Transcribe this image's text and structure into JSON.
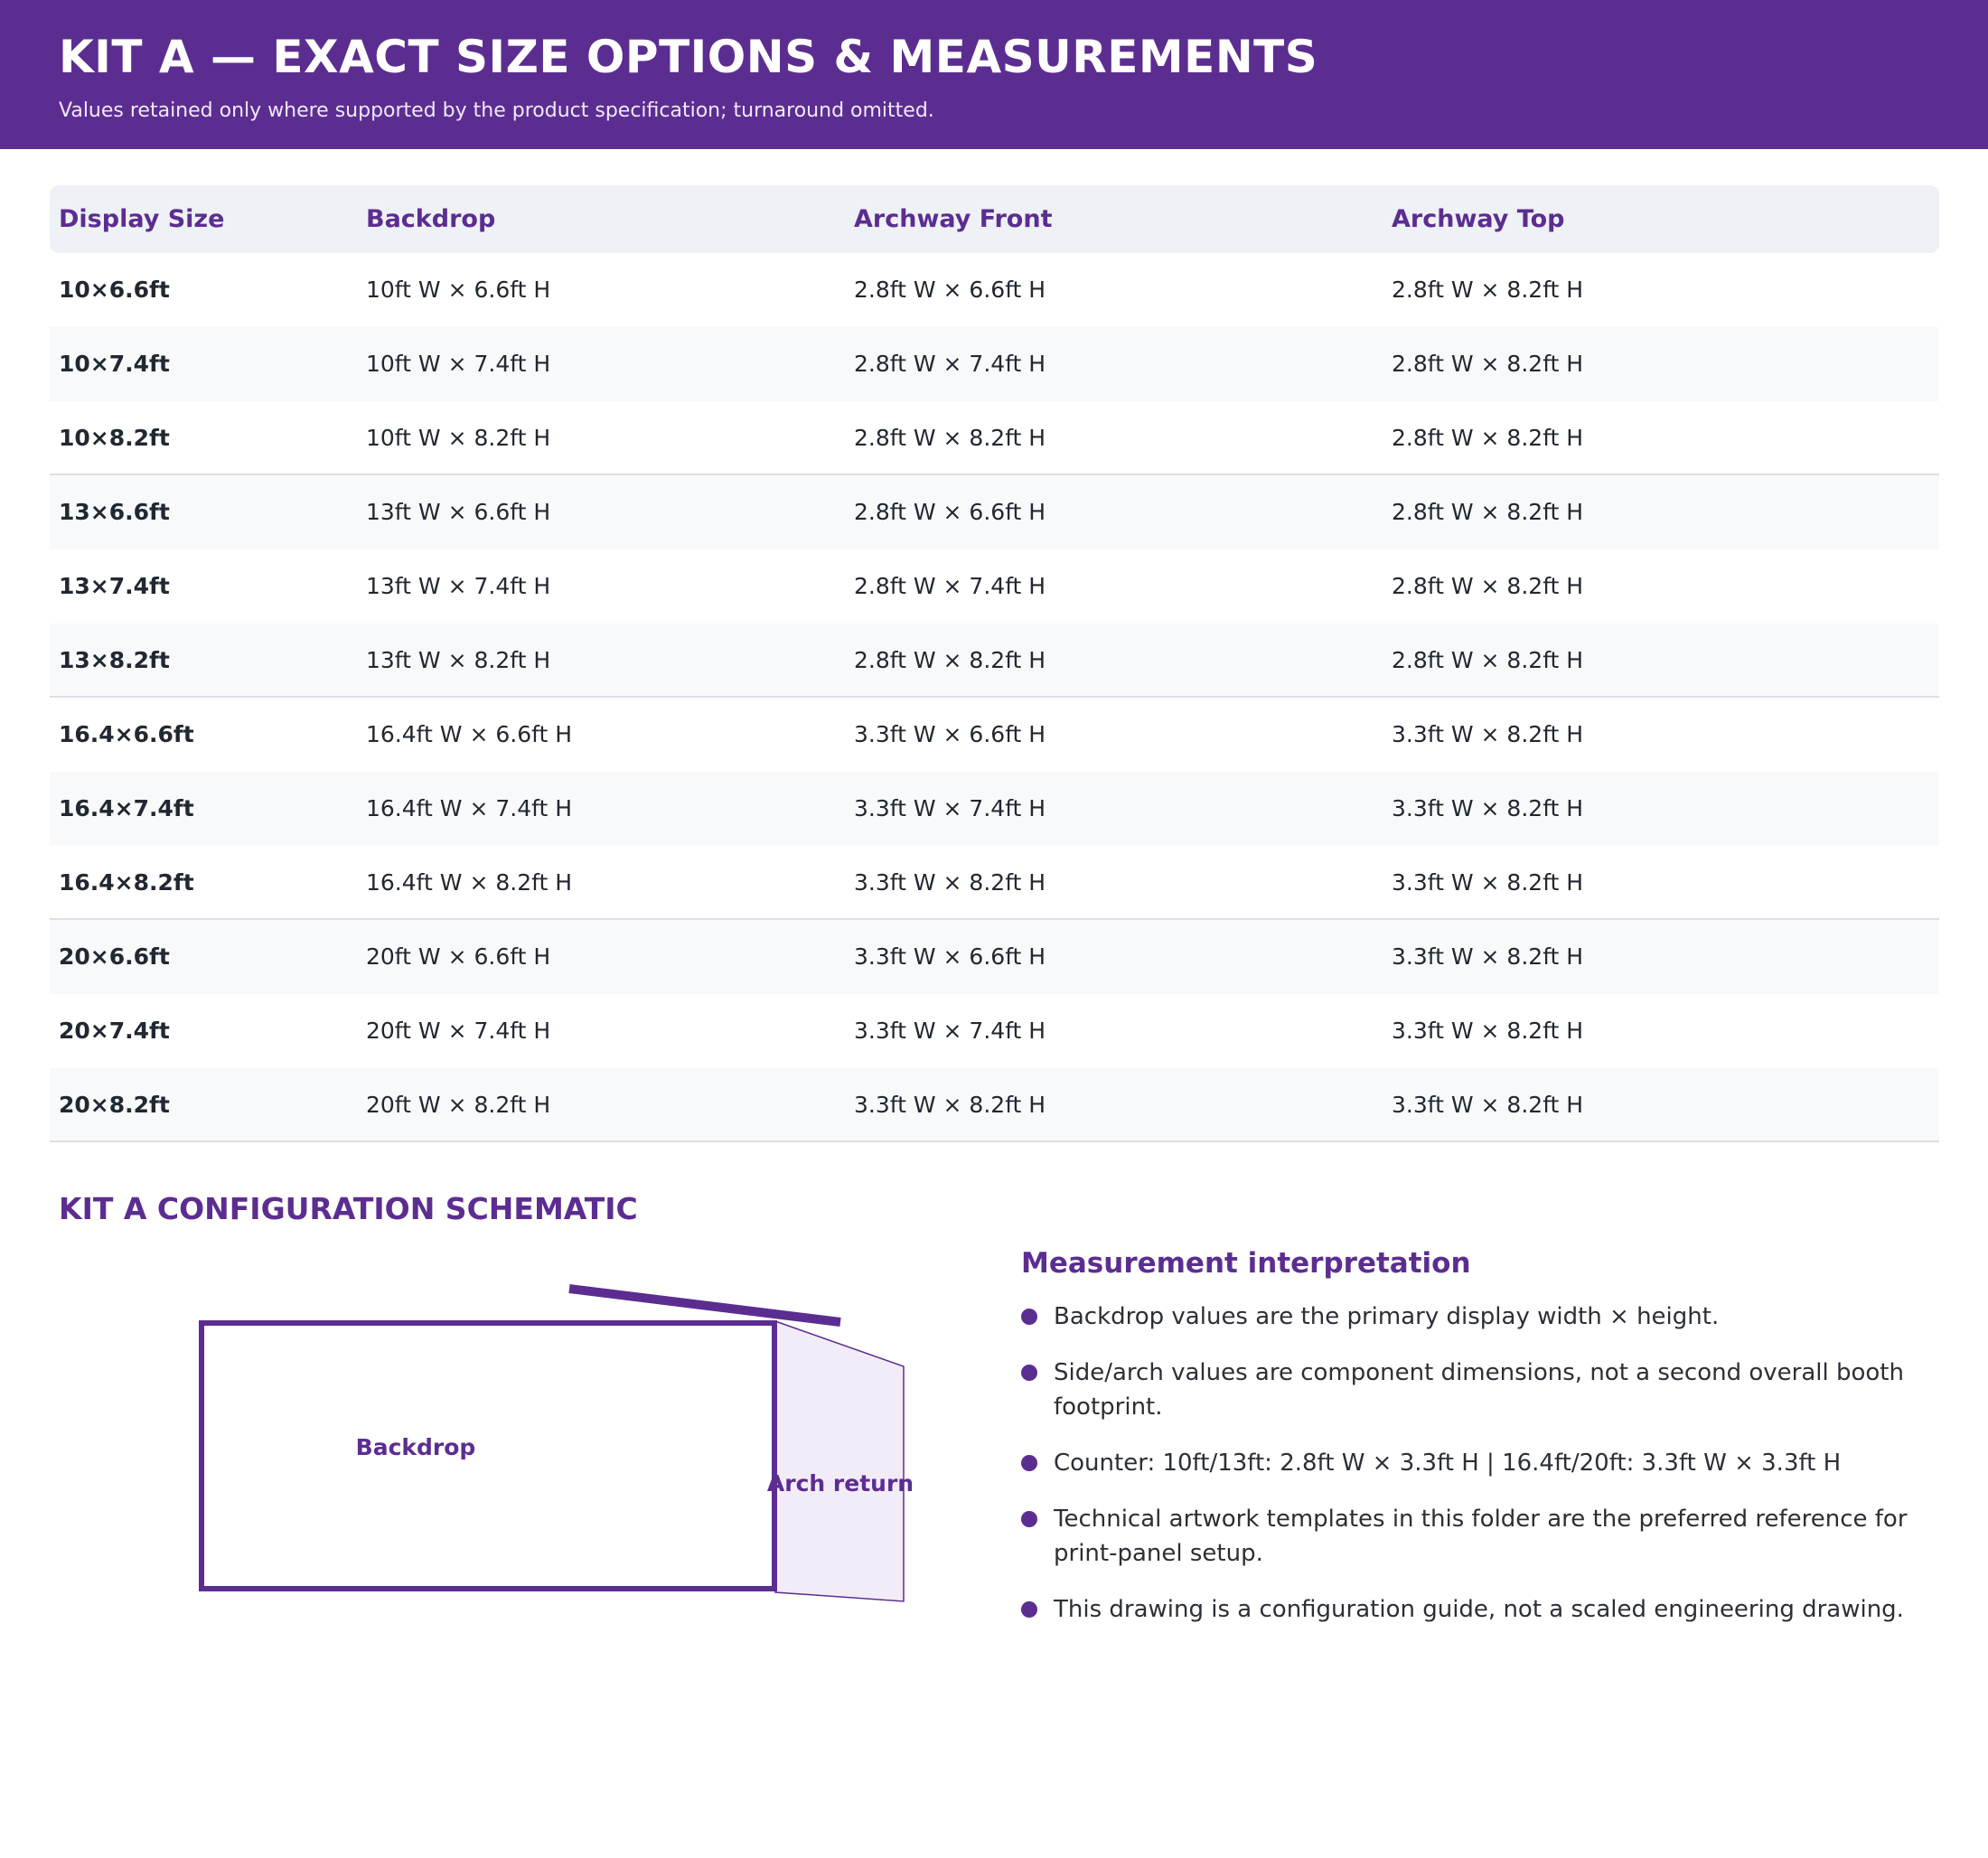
{
  "header": {
    "title": "KIT A — EXACT SIZE OPTIONS & MEASUREMENTS",
    "subtitle": "Values retained only where supported by the product specification; turnaround omitted."
  },
  "table": {
    "columns": [
      "Display Size",
      "Backdrop",
      "Archway Front",
      "Archway Top"
    ],
    "rows": [
      [
        "10×6.6ft",
        "10ft W × 6.6ft H",
        "2.8ft W × 6.6ft H",
        "2.8ft W × 8.2ft H"
      ],
      [
        "10×7.4ft",
        "10ft W × 7.4ft H",
        "2.8ft W × 7.4ft H",
        "2.8ft W × 8.2ft H"
      ],
      [
        "10×8.2ft",
        "10ft W × 8.2ft H",
        "2.8ft W × 8.2ft H",
        "2.8ft W × 8.2ft H"
      ],
      [
        "13×6.6ft",
        "13ft W × 6.6ft H",
        "2.8ft W × 6.6ft H",
        "2.8ft W × 8.2ft H"
      ],
      [
        "13×7.4ft",
        "13ft W × 7.4ft H",
        "2.8ft W × 7.4ft H",
        "2.8ft W × 8.2ft H"
      ],
      [
        "13×8.2ft",
        "13ft W × 8.2ft H",
        "2.8ft W × 8.2ft H",
        "2.8ft W × 8.2ft H"
      ],
      [
        "16.4×6.6ft",
        "16.4ft W × 6.6ft H",
        "3.3ft W × 6.6ft H",
        "3.3ft W × 8.2ft H"
      ],
      [
        "16.4×7.4ft",
        "16.4ft W × 7.4ft H",
        "3.3ft W × 7.4ft H",
        "3.3ft W × 8.2ft H"
      ],
      [
        "16.4×8.2ft",
        "16.4ft W × 8.2ft H",
        "3.3ft W × 8.2ft H",
        "3.3ft W × 8.2ft H"
      ],
      [
        "20×6.6ft",
        "20ft W × 6.6ft H",
        "3.3ft W × 6.6ft H",
        "3.3ft W × 8.2ft H"
      ],
      [
        "20×7.4ft",
        "20ft W × 7.4ft H",
        "3.3ft W × 7.4ft H",
        "3.3ft W × 8.2ft H"
      ],
      [
        "20×8.2ft",
        "20ft W × 8.2ft H",
        "3.3ft W × 8.2ft H",
        "3.3ft W × 8.2ft H"
      ]
    ]
  },
  "schematic": {
    "title": "KIT A CONFIGURATION SCHEMATIC",
    "backdrop_label": "Backdrop",
    "arch_label": "Arch return"
  },
  "notes": {
    "title": "Measurement interpretation",
    "items": [
      "Backdrop values are the primary display width × height.",
      "Side/arch values are component dimensions, not a second overall booth footprint.",
      "Counter: 10ft/13ft: 2.8ft W × 3.3ft H | 16.4ft/20ft: 3.3ft W × 3.3ft H",
      "Technical artwork templates in this folder are the preferred reference for print-panel setup.",
      "This drawing is a configuration guide, not a scaled engineering drawing."
    ]
  },
  "colors": {
    "brand": "#5c2d91",
    "header_row_bg": "#eef1f6",
    "alt_row_bg": "#f8f9fb",
    "arch_fill": "#f2ecf8"
  }
}
